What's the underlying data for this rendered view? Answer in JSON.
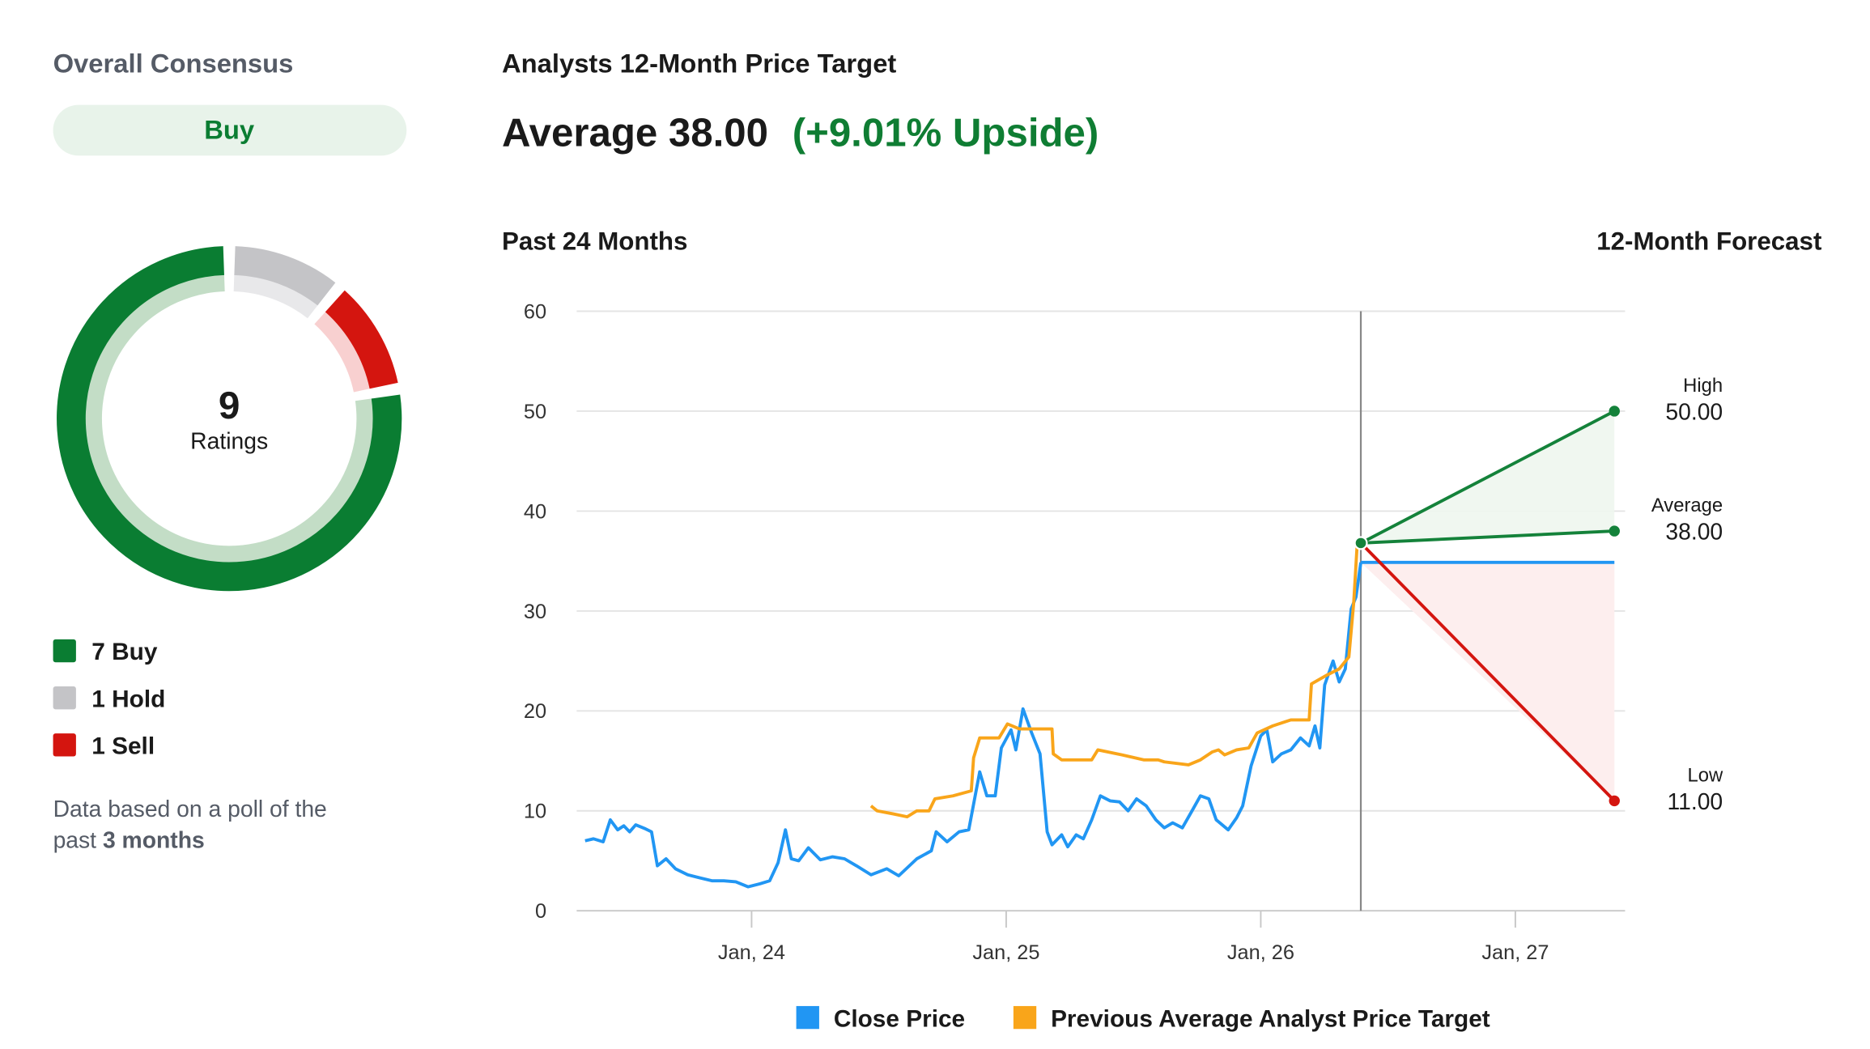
{
  "consensus": {
    "title": "Overall Consensus",
    "rating": "Buy",
    "note": [
      "Data based on a poll of the",
      "past"
    ],
    "note_bold": "3 months"
  },
  "price_target": {
    "title": "Analysts 12-Month Price Target",
    "label": "Average",
    "value": 38,
    "value_label": "38.00",
    "upside": "(+9.01% Upside)"
  },
  "chart_data": [
    {
      "type": "donut",
      "categories": [
        "Buy",
        "Hold",
        "Sell"
      ],
      "values": [
        7,
        1,
        1
      ],
      "colors": [
        "#0a7d32",
        "#c4c4c7",
        "#d4150f"
      ],
      "light_colors": [
        "#c3ddc6",
        "#e8e8ea",
        "#f8d0d0"
      ],
      "total": 9,
      "center_label": "Ratings"
    },
    {
      "type": "line",
      "left_title": "Past 24 Months",
      "right_title": "12-Month Forecast",
      "xlim": [
        2023.313,
        2027.431
      ],
      "xticks": [
        {
          "value": 2024,
          "label": "Jan, 24"
        },
        {
          "value": 2025,
          "label": "Jan, 25"
        },
        {
          "value": 2026,
          "label": "Jan, 26"
        },
        {
          "value": 2027,
          "label": "Jan, 27"
        }
      ],
      "ylim": [
        0,
        60
      ],
      "yticks": [
        0,
        10,
        20,
        30,
        40,
        50,
        60
      ],
      "grid": true,
      "series": [
        {
          "name": "Close Price",
          "color": "#2196f3",
          "x": [
            2023.346,
            2023.379,
            2023.417,
            2023.445,
            2023.474,
            2023.498,
            2023.521,
            2023.545,
            2023.583,
            2023.607,
            2023.63,
            2023.664,
            2023.701,
            2023.749,
            2023.796,
            2023.844,
            2023.891,
            2023.938,
            2023.986,
            2024.033,
            2024.071,
            2024.104,
            2024.133,
            2024.156,
            2024.185,
            2024.223,
            2024.27,
            2024.318,
            2024.365,
            2024.412,
            2024.469,
            2024.531,
            2024.578,
            2024.649,
            2024.706,
            2024.725,
            2024.768,
            2024.815,
            2024.853,
            2024.896,
            2024.924,
            2024.957,
            2024.981,
            2025.019,
            2025.038,
            2025.066,
            2025.1,
            2025.133,
            2025.161,
            2025.18,
            2025.218,
            2025.242,
            2025.275,
            2025.303,
            2025.336,
            2025.37,
            2025.408,
            2025.445,
            2025.479,
            2025.512,
            2025.55,
            2025.588,
            2025.621,
            2025.654,
            2025.692,
            2025.73,
            2025.763,
            2025.796,
            2025.825,
            2025.872,
            2025.905,
            2025.929,
            2025.962,
            2026.0,
            2026.024,
            2026.047,
            2026.081,
            2026.118,
            2026.156,
            2026.19,
            2026.213,
            2026.232,
            2026.251,
            2026.284,
            2026.308,
            2026.332,
            2026.355,
            2026.374,
            2026.393
          ],
          "values": [
            7.0,
            7.2,
            6.9,
            9.1,
            8.1,
            8.5,
            7.9,
            8.6,
            8.2,
            7.9,
            4.5,
            5.2,
            4.2,
            3.6,
            3.3,
            3.0,
            3.0,
            2.9,
            2.4,
            2.7,
            3.0,
            4.8,
            8.1,
            5.2,
            5.0,
            6.3,
            5.1,
            5.4,
            5.2,
            4.5,
            3.6,
            4.2,
            3.5,
            5.2,
            6.0,
            7.9,
            6.9,
            7.9,
            8.1,
            13.9,
            11.5,
            11.5,
            16.3,
            18.1,
            16.1,
            20.2,
            17.8,
            15.7,
            7.9,
            6.6,
            7.6,
            6.4,
            7.6,
            7.2,
            9.1,
            11.5,
            11.0,
            10.9,
            10.0,
            11.2,
            10.5,
            9.1,
            8.3,
            8.8,
            8.3,
            10.0,
            11.5,
            11.2,
            9.1,
            8.1,
            9.3,
            10.5,
            14.5,
            17.5,
            18.1,
            14.9,
            15.7,
            16.1,
            17.3,
            16.5,
            18.5,
            16.3,
            22.6,
            25.0,
            22.9,
            24.2,
            30.2,
            31.4,
            34.86
          ]
        },
        {
          "name": "Previous Average Analyst Price Target",
          "color": "#f9a51a",
          "x": [
            2024.469,
            2024.493,
            2024.555,
            2024.611,
            2024.649,
            2024.697,
            2024.72,
            2024.791,
            2024.863,
            2024.872,
            2024.896,
            2024.972,
            2025.005,
            2025.052,
            2025.1,
            2025.18,
            2025.185,
            2025.218,
            2025.336,
            2025.36,
            2025.455,
            2025.54,
            2025.597,
            2025.621,
            2025.716,
            2025.763,
            2025.81,
            2025.834,
            2025.858,
            2025.905,
            2025.953,
            2025.986,
            2026.047,
            2026.118,
            2026.19,
            2026.199,
            2026.261,
            2026.308,
            2026.346,
            2026.365,
            2026.379,
            2026.393
          ],
          "values": [
            10.5,
            10.0,
            9.7,
            9.4,
            10.0,
            10.0,
            11.2,
            11.5,
            12.0,
            15.3,
            17.3,
            17.3,
            18.7,
            18.2,
            18.2,
            18.2,
            15.7,
            15.1,
            15.1,
            16.1,
            15.6,
            15.1,
            15.1,
            14.9,
            14.6,
            15.1,
            15.9,
            16.1,
            15.6,
            16.1,
            16.3,
            17.8,
            18.5,
            19.1,
            19.1,
            22.7,
            23.6,
            24.2,
            25.4,
            30.8,
            36.8,
            36.7
          ]
        }
      ],
      "forecast": {
        "x_start": 2026.393,
        "x_end": 2027.389,
        "start": 36.8,
        "current_price": 34.86,
        "targets": [
          {
            "name": "High",
            "value": 50,
            "value_label": "50.00",
            "color": "#14823a"
          },
          {
            "name": "Average",
            "value": 38,
            "value_label": "38.00",
            "color": "#14823a"
          },
          {
            "name": "Low",
            "value": 11,
            "value_label": "11.00",
            "color": "#d4150f"
          }
        ]
      }
    }
  ]
}
